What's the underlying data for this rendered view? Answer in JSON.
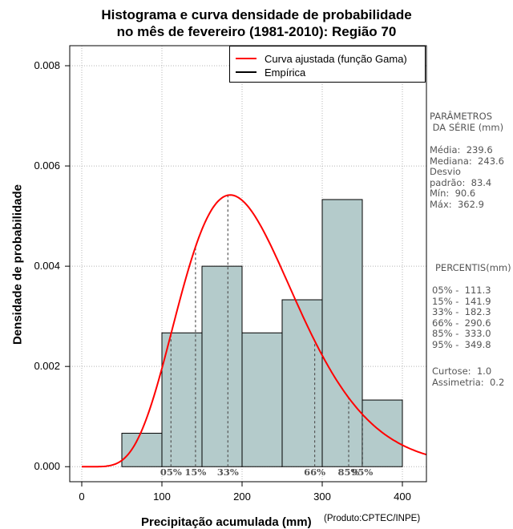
{
  "chart_data": {
    "type": "bar",
    "title_line1": "Histograma e curva densidade de probabilidade",
    "title_line2": "no mês de fevereiro (1981-2010): Região 70",
    "xlabel": "Precipitação acumulada (mm)",
    "ylabel": "Densidade de probabilidade",
    "credit": "(Produto:CPTEC/INPE)",
    "xlim": [
      -15,
      430
    ],
    "ylim": [
      -0.0003,
      0.0084
    ],
    "x_ticks": [
      0,
      100,
      200,
      300,
      400
    ],
    "x_tick_labels": [
      "0",
      "100",
      "200",
      "300",
      "400"
    ],
    "y_ticks": [
      0.0,
      0.002,
      0.004,
      0.006,
      0.008
    ],
    "y_tick_labels": [
      "0.000",
      "0.002",
      "0.004",
      "0.006",
      "0.008"
    ],
    "grid": true,
    "bins": [
      {
        "x0": 50,
        "x1": 100,
        "density": 0.000667
      },
      {
        "x0": 100,
        "x1": 150,
        "density": 0.00267
      },
      {
        "x0": 150,
        "x1": 200,
        "density": 0.004
      },
      {
        "x0": 200,
        "x1": 250,
        "density": 0.00267
      },
      {
        "x0": 250,
        "x1": 300,
        "density": 0.00333
      },
      {
        "x0": 300,
        "x1": 350,
        "density": 0.00533
      },
      {
        "x0": 350,
        "x1": 400,
        "density": 0.00133
      }
    ],
    "gamma_curve": {
      "shape": 7.5,
      "scale": 28.5
    },
    "legend": [
      {
        "label": "Curva ajustada (função Gama)",
        "color": "#ff0000"
      },
      {
        "label": "Empírica",
        "color": "#000000"
      }
    ],
    "percentile_lines": [
      {
        "label": "05%",
        "value": 111.3
      },
      {
        "label": "15%",
        "value": 141.9
      },
      {
        "label": "33%",
        "value": 182.3
      },
      {
        "label": "66%",
        "value": 290.6
      },
      {
        "label": "85%",
        "value": 333.0
      },
      {
        "label": "95%",
        "value": 349.8
      }
    ]
  },
  "side_panel": {
    "params_title": "PARÂMETROS\n DA SÉRIE (mm)",
    "params_body": "Média:  239.6\nMediana:  243.6\nDesvio\npadrão:  83.4\nMín:  90.6\nMáx:  362.9",
    "percentis_title": "PERCENTIS(mm)",
    "percentis_body": "05% -  111.3\n15% -  141.9\n33% -  182.3\n66% -  290.6\n85% -  333.0\n95% -  349.8",
    "shape_body": "Curtose:  1.0\nAssimetria:  0.2"
  },
  "colors": {
    "bar_fill": "#b4cbcb",
    "bar_stroke": "#000000",
    "curve": "#ff0000",
    "grid": "#b4b4b4",
    "percentile_line": "#555555"
  }
}
